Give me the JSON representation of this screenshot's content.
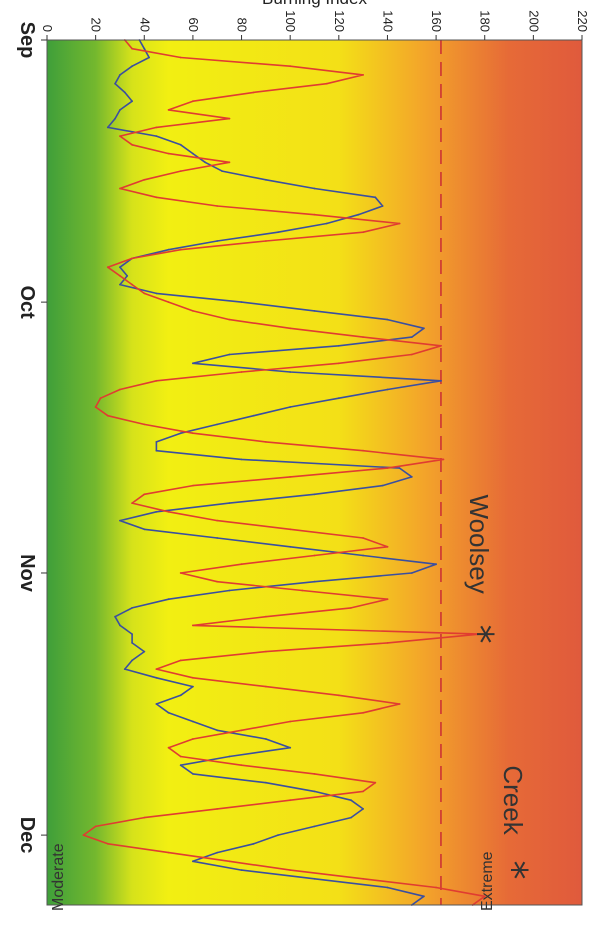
{
  "chart_data": {
    "type": "line",
    "ylabel": "Burning Index",
    "ylim": [
      0,
      220
    ],
    "yticks": [
      0,
      20,
      40,
      60,
      80,
      100,
      120,
      140,
      160,
      180,
      200,
      220
    ],
    "xlim": [
      1,
      100
    ],
    "xticks": [
      {
        "day": 1,
        "label": "Sep"
      },
      {
        "day": 31,
        "label": "Oct"
      },
      {
        "day": 62,
        "label": "Nov"
      },
      {
        "day": 92,
        "label": "Dec"
      }
    ],
    "threshold": {
      "value": 162,
      "color": "#cc3333",
      "style": "dashed"
    },
    "background_gradient": [
      {
        "value": 0,
        "color": "#3f9f3a"
      },
      {
        "value": 20,
        "color": "#74b82e"
      },
      {
        "value": 35,
        "color": "#d6e21a"
      },
      {
        "value": 50,
        "color": "#f2ef12"
      },
      {
        "value": 120,
        "color": "#f3e017"
      },
      {
        "value": 155,
        "color": "#f3a42a"
      },
      {
        "value": 190,
        "color": "#e66a37"
      },
      {
        "value": 220,
        "color": "#e05a3c"
      }
    ],
    "band_labels": {
      "top": "Extreme",
      "bottom": "Moderate"
    },
    "events": [
      {
        "name": "Woolsey",
        "day": 69,
        "value": 178
      },
      {
        "name": "Creek",
        "day": 96,
        "value": 192
      }
    ],
    "series": [
      {
        "color": "#3a4fa0",
        "x": [
          1,
          2,
          3,
          4,
          5,
          6,
          7,
          8,
          9,
          10,
          11,
          12,
          13,
          14,
          15,
          16,
          17,
          18,
          19,
          20,
          21,
          22,
          23,
          24,
          25,
          26,
          27,
          28,
          29,
          30,
          31,
          32,
          33,
          34,
          35,
          36,
          37,
          38,
          39,
          40,
          41,
          42,
          43,
          44,
          45,
          46,
          47,
          48,
          49,
          50,
          51,
          52,
          53,
          54,
          55,
          56,
          57,
          58,
          59,
          60,
          61,
          62,
          63,
          64,
          65,
          66,
          67,
          68,
          69,
          70,
          71,
          72,
          73,
          74,
          75,
          76,
          77,
          78,
          79,
          80,
          81,
          82,
          83,
          84,
          85,
          86,
          87,
          88,
          89,
          90,
          91,
          92,
          93,
          94,
          95,
          96,
          97,
          98,
          99,
          100
        ],
        "y": [
          38,
          40,
          42,
          35,
          30,
          28,
          32,
          35,
          30,
          28,
          25,
          45,
          55,
          60,
          65,
          72,
          90,
          110,
          135,
          138,
          128,
          115,
          95,
          70,
          50,
          35,
          30,
          33,
          30,
          45,
          80,
          110,
          140,
          155,
          150,
          120,
          75,
          60,
          100,
          162,
          140,
          120,
          100,
          85,
          70,
          55,
          45,
          45,
          80,
          145,
          150,
          138,
          110,
          75,
          45,
          30,
          40,
          70,
          100,
          130,
          160,
          150,
          110,
          75,
          50,
          35,
          28,
          30,
          35,
          35,
          40,
          35,
          32,
          45,
          60,
          55,
          45,
          50,
          60,
          70,
          90,
          100,
          75,
          55,
          60,
          90,
          110,
          125,
          130,
          125,
          110,
          95,
          85,
          70,
          60,
          80,
          110,
          140,
          155,
          150
        ]
      },
      {
        "color": "#e03c31",
        "x": [
          1,
          2,
          3,
          4,
          5,
          6,
          7,
          8,
          9,
          10,
          11,
          12,
          13,
          14,
          15,
          16,
          17,
          18,
          19,
          20,
          21,
          22,
          23,
          24,
          25,
          26,
          27,
          28,
          29,
          30,
          31,
          32,
          33,
          34,
          35,
          36,
          37,
          38,
          39,
          40,
          41,
          42,
          43,
          44,
          45,
          46,
          47,
          48,
          49,
          50,
          51,
          52,
          53,
          54,
          55,
          56,
          57,
          58,
          59,
          60,
          61,
          62,
          63,
          64,
          65,
          66,
          67,
          68,
          69,
          70,
          71,
          72,
          73,
          74,
          75,
          76,
          77,
          78,
          79,
          80,
          81,
          82,
          83,
          84,
          85,
          86,
          87,
          88,
          89,
          90,
          91,
          92,
          93,
          94,
          95,
          96,
          97,
          98,
          99,
          100
        ],
        "y": [
          32,
          35,
          55,
          100,
          130,
          115,
          85,
          60,
          50,
          75,
          45,
          30,
          35,
          50,
          75,
          55,
          40,
          30,
          45,
          70,
          110,
          145,
          130,
          90,
          55,
          35,
          25,
          30,
          35,
          40,
          50,
          60,
          75,
          100,
          130,
          162,
          150,
          120,
          80,
          45,
          30,
          22,
          20,
          25,
          40,
          60,
          90,
          130,
          163,
          140,
          100,
          60,
          40,
          35,
          50,
          70,
          100,
          130,
          140,
          110,
          80,
          55,
          70,
          105,
          140,
          125,
          90,
          60,
          178,
          140,
          90,
          55,
          45,
          60,
          90,
          120,
          145,
          130,
          100,
          80,
          60,
          50,
          55,
          80,
          110,
          135,
          130,
          100,
          70,
          40,
          20,
          15,
          25,
          50,
          75,
          100,
          130,
          160,
          180,
          175
        ]
      }
    ]
  }
}
